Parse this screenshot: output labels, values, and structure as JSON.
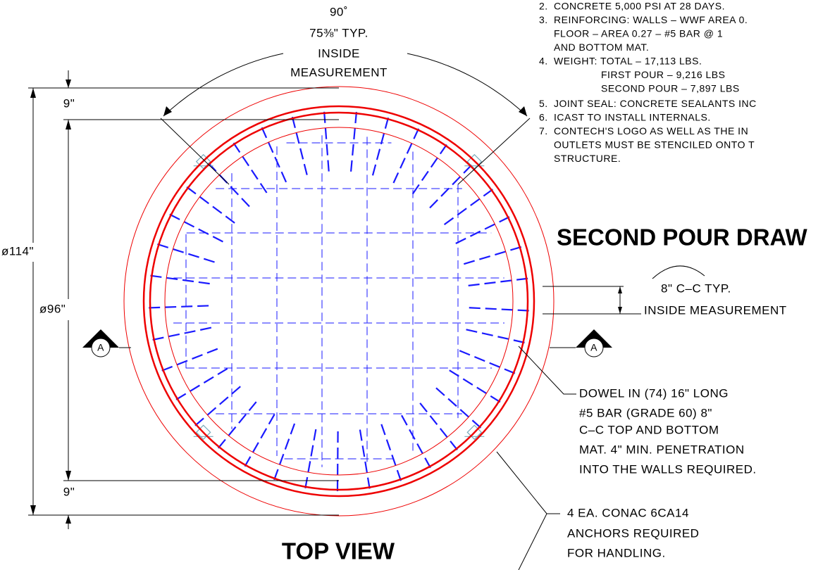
{
  "notes": [
    {
      "number": "2.",
      "lines": [
        "CONCRETE 5,000 PSI AT 28 DAYS."
      ]
    },
    {
      "number": "3.",
      "lines": [
        "REINFORCING: WALLS – WWF AREA 0.",
        "FLOOR – AREA 0.27 – #5 BAR @ 1",
        "AND BOTTOM MAT."
      ]
    },
    {
      "number": "4.",
      "lines": [
        "WEIGHT: TOTAL – 17,113 LBS.",
        "FIRST POUR – 9,216 LBS",
        "SECOND POUR – 7,897 LBS"
      ]
    },
    {
      "number": "5.",
      "lines": [
        "JOINT SEAL: CONCRETE SEALANTS INC"
      ]
    },
    {
      "number": "6.",
      "lines": [
        "ICAST TO INSTALL INTERNALS."
      ]
    },
    {
      "number": "7.",
      "lines": [
        "CONTECH'S LOGO AS WELL AS THE IN",
        "OUTLETS MUST BE STENCILED ONTO T",
        "STRUCTURE."
      ]
    }
  ],
  "second_pour_title": "SECOND POUR DRAW",
  "top_view_title": "TOP VIEW",
  "angle_dimension": {
    "angle": "90˚",
    "spacing": "75⅜\" TYP.",
    "line1": "INSIDE",
    "line2": "MEASUREMENT"
  },
  "spacing_dimension": {
    "spacing": "8\" C–C TYP.",
    "note": "INSIDE MEASUREMENT"
  },
  "dimensions": {
    "outer_diameter": "ø114\"",
    "inner_diameter": "ø96\"",
    "top_wall": "9\"",
    "bottom_wall": "9\""
  },
  "section_marks": [
    "A",
    "A"
  ],
  "dowel_callout": [
    "DOWEL IN (74) 16\" LONG",
    "#5 BAR (GRADE 60) 8\"",
    "C–C TOP AND BOTTOM",
    "MAT. 4\" MIN. PENETRATION",
    "INTO THE WALLS REQUIRED."
  ],
  "anchor_callout": [
    "4 EA. CONAC 6CA14",
    "ANCHORS REQUIRED",
    "FOR HANDLING."
  ]
}
